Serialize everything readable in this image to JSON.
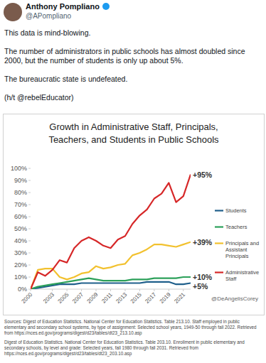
{
  "tweet": {
    "name": "Anthony Pompliano",
    "handle": "@APompliano",
    "paragraphs": [
      "This data is mind-blowing.",
      "The number of administrators in public schools has almost doubled since 2000, but the number of students is only up about 5%.",
      "The bureaucratic state is undefeated.",
      "(h/t @rebelEducator)"
    ]
  },
  "chart_data": {
    "type": "line",
    "title": "Growth in Administrative Staff, Principals, Teachers, and Students in Public Schools",
    "x": [
      2000,
      2001,
      2002,
      2003,
      2004,
      2005,
      2006,
      2007,
      2008,
      2009,
      2010,
      2011,
      2012,
      2013,
      2014,
      2015,
      2016,
      2017,
      2018,
      2019,
      2020,
      2021,
      2022
    ],
    "xlim": [
      2000,
      2022
    ],
    "xticks": [
      2000,
      2003,
      2005,
      2007,
      2009,
      2011,
      2013,
      2015,
      2017,
      2019,
      2021
    ],
    "ylim": [
      0,
      100
    ],
    "yticks": [
      {
        "value": 0,
        "label": "0%"
      },
      {
        "value": 10,
        "label": "10%"
      },
      {
        "value": 20,
        "label": "20%"
      },
      {
        "value": 30,
        "label": "30%"
      },
      {
        "value": 40,
        "label": "40%"
      },
      {
        "value": 50,
        "label": "50%"
      },
      {
        "value": 60,
        "label": "60%"
      },
      {
        "value": 70,
        "label": "70%"
      },
      {
        "value": 80,
        "label": "80%"
      },
      {
        "value": 90,
        "label": "90%"
      },
      {
        "value": 100,
        "label": "100%"
      }
    ],
    "grid": false,
    "legend": "right",
    "series": [
      {
        "name": "Students",
        "color": "#1f5f8b",
        "annotation": "+5%",
        "values": [
          0,
          1,
          2,
          3,
          4,
          4,
          4,
          5,
          5,
          5,
          5,
          5,
          5,
          5,
          5,
          5,
          6,
          6,
          6,
          6,
          4,
          4,
          5
        ]
      },
      {
        "name": "Teachers",
        "color": "#2ca05a",
        "annotation": "+10%",
        "values": [
          0,
          2,
          3,
          4,
          5,
          6,
          7,
          8,
          9,
          8,
          7,
          7,
          7,
          7,
          8,
          8,
          8,
          9,
          9,
          9,
          9,
          10,
          10
        ]
      },
      {
        "name": "Principals and Assistant Principals",
        "color": "#f2c12e",
        "annotation": "+39%",
        "values": [
          0,
          16,
          17,
          17,
          10,
          8,
          10,
          13,
          14,
          19,
          17,
          18,
          20,
          21,
          28,
          30,
          33,
          37,
          37,
          36,
          35,
          37,
          39
        ]
      },
      {
        "name": "Administrative Staff",
        "color": "#d62728",
        "annotation": "+95%",
        "values": [
          0,
          14,
          11,
          16,
          24,
          22,
          34,
          40,
          43,
          40,
          36,
          34,
          41,
          44,
          54,
          61,
          66,
          75,
          79,
          88,
          72,
          77,
          95
        ]
      }
    ]
  },
  "credit": "@DeAngelisCorey",
  "sources": [
    "Sources: Digest of Education Statistics. National Center for Education Statistics. Table 213.10. Staff employed in public elementary and secondary school systems, by type of assignment: Selected school years, 1949-50 through fall 2022. Retrieved from https://nces.ed.gov/programs/digest/d23/tables/dt23_213.10.asp",
    "Digest of Education Statistics. National Center for Education Statistics. Table 203.10. Enrollment in public elementary and secondary schools, by level and grade: Selected years, fall 1980 through fall 2031. Retrieved from https://nces.ed.gov/programs/digest/d23/tables/dt23_203.10.asp"
  ]
}
